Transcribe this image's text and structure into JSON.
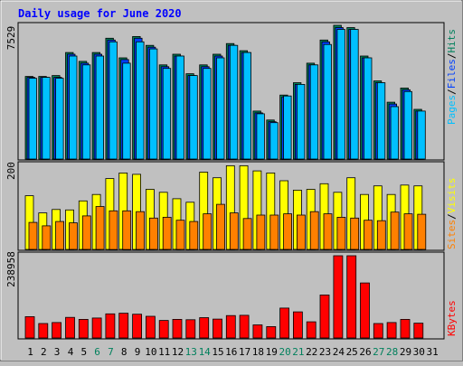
{
  "title": "Daily usage for June 2020",
  "colors": {
    "background": "#c0c0c0",
    "title": "#0000ff",
    "hits": "#00805c",
    "files": "#0040ff",
    "pages": "#00c0ff",
    "visits": "#ffff00",
    "sites": "#ff8000",
    "kbytes": "#ff0000",
    "weekend_label": "#00805c",
    "weekday_label": "#000000"
  },
  "chart_data": [
    {
      "type": "bar",
      "panel": "top",
      "y_max_label": "7529",
      "ylim": [
        0,
        7529
      ],
      "legend": [
        "Pages",
        "/",
        "Files",
        "/",
        "Hits"
      ],
      "categories": [
        "1",
        "2",
        "3",
        "4",
        "5",
        "6",
        "7",
        "8",
        "9",
        "10",
        "11",
        "12",
        "13",
        "14",
        "15",
        "16",
        "17",
        "18",
        "19",
        "20",
        "21",
        "22",
        "23",
        "24",
        "25",
        "26",
        "27",
        "28",
        "29",
        "30",
        "31"
      ],
      "weekend_days": [
        6,
        7,
        13,
        14,
        20,
        21,
        27,
        28
      ],
      "series": [
        {
          "name": "Hits",
          "values": [
            4650,
            4650,
            4700,
            6000,
            5500,
            6000,
            6800,
            5700,
            6900,
            6400,
            5300,
            5900,
            4800,
            5300,
            5900,
            6500,
            6100,
            2700,
            2200,
            3600,
            4300,
            5400,
            6700,
            7529,
            7400,
            5800,
            4400,
            3200,
            4000,
            2800,
            0
          ]
        },
        {
          "name": "Files",
          "values": [
            4600,
            4600,
            4600,
            5900,
            5400,
            5900,
            6700,
            5600,
            6800,
            6300,
            5200,
            5800,
            4700,
            5200,
            5800,
            6400,
            6000,
            2600,
            2100,
            3500,
            4200,
            5300,
            6600,
            7400,
            7300,
            5700,
            4300,
            3100,
            3900,
            2700,
            0
          ]
        },
        {
          "name": "Pages",
          "values": [
            4550,
            4600,
            4550,
            5800,
            5300,
            5800,
            6600,
            5400,
            6600,
            6200,
            5100,
            5800,
            4700,
            5100,
            5700,
            6400,
            6000,
            2550,
            2050,
            3550,
            4200,
            5300,
            6450,
            7300,
            7300,
            5700,
            4300,
            2950,
            3800,
            2700,
            0
          ]
        }
      ]
    },
    {
      "type": "bar",
      "panel": "middle",
      "y_max_label": "200",
      "ylim": [
        0,
        200
      ],
      "legend": [
        "Sites",
        "/",
        "Visits"
      ],
      "categories": [
        "1",
        "2",
        "3",
        "4",
        "5",
        "6",
        "7",
        "8",
        "9",
        "10",
        "11",
        "12",
        "13",
        "14",
        "15",
        "16",
        "17",
        "18",
        "19",
        "20",
        "21",
        "22",
        "23",
        "24",
        "25",
        "26",
        "27",
        "28",
        "29",
        "30",
        "31"
      ],
      "series": [
        {
          "name": "Visits",
          "values": [
            125,
            85,
            93,
            92,
            113,
            128,
            165,
            178,
            175,
            140,
            133,
            118,
            110,
            180,
            167,
            195,
            195,
            183,
            178,
            160,
            138,
            140,
            153,
            133,
            167,
            128,
            148,
            128,
            150,
            148,
            0
          ]
        },
        {
          "name": "Sites",
          "values": [
            63,
            55,
            65,
            62,
            78,
            100,
            90,
            90,
            88,
            73,
            75,
            68,
            65,
            83,
            105,
            85,
            72,
            80,
            80,
            83,
            80,
            88,
            83,
            75,
            73,
            68,
            67,
            87,
            83,
            82,
            0
          ]
        }
      ]
    },
    {
      "type": "bar",
      "panel": "bottom",
      "y_max_label": "238958",
      "ylim": [
        0,
        238958
      ],
      "legend": [
        "KBytes"
      ],
      "categories": [
        "1",
        "2",
        "3",
        "4",
        "5",
        "6",
        "7",
        "8",
        "9",
        "10",
        "11",
        "12",
        "13",
        "14",
        "15",
        "16",
        "17",
        "18",
        "19",
        "20",
        "21",
        "22",
        "23",
        "24",
        "25",
        "26",
        "27",
        "28",
        "29",
        "30",
        "31"
      ],
      "series": [
        {
          "name": "KBytes",
          "values": [
            62000,
            42000,
            45000,
            60000,
            54000,
            58000,
            70000,
            72000,
            69000,
            63000,
            51000,
            54000,
            53000,
            59000,
            55000,
            65000,
            66000,
            38000,
            33000,
            87000,
            76000,
            47000,
            125000,
            238958,
            238958,
            160000,
            42000,
            45000,
            54000,
            43000,
            0
          ]
        }
      ]
    }
  ]
}
